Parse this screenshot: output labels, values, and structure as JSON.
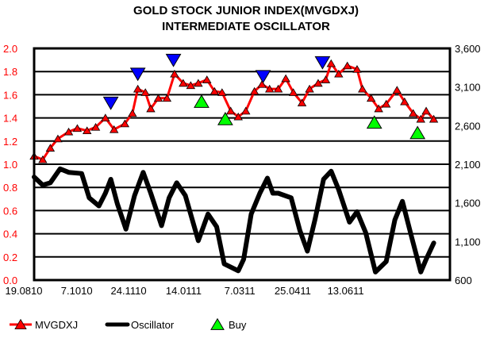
{
  "chart_data": {
    "type": "line",
    "title": "GOLD STOCK JUNIOR INDEX(MVGDXJ)",
    "subtitle": "INTERMEDIATE OSCILLATOR",
    "xlim": [
      "2010-08-19",
      "2011-09-08"
    ],
    "x_ticks": [
      {
        "date": "2010-08-19",
        "label": "19.0810"
      },
      {
        "date": "2010-10-07",
        "label": "7.1010"
      },
      {
        "date": "2010-11-24",
        "label": "24.1110"
      },
      {
        "date": "2011-01-14",
        "label": "14.0111"
      },
      {
        "date": "2011-03-07",
        "label": "7.0311"
      },
      {
        "date": "2011-04-25",
        "label": "25.0411"
      },
      {
        "date": "2011-06-13",
        "label": "13.0611"
      }
    ],
    "y_left": {
      "lim": [
        0,
        2.0
      ],
      "ticks": [
        "0.0",
        "0.2",
        "0.4",
        "0.6",
        "0.8",
        "1.0",
        "1.2",
        "1.4",
        "1.6",
        "1.8",
        "2.0"
      ],
      "color": "#ff0000"
    },
    "y_right": {
      "lim": [
        600,
        3600
      ],
      "ticks": [
        "600",
        "1,100",
        "1,600",
        "2,100",
        "2,600",
        "3,100",
        "3,600"
      ],
      "color": "#000000"
    },
    "grid": true,
    "legend_placement": "bottom",
    "legend": [
      {
        "label": "MVGDXJ",
        "kind": "mvgdxj"
      },
      {
        "label": "Oscillator",
        "kind": "oscillator"
      },
      {
        "label": "Buy",
        "kind": "buy"
      }
    ],
    "series": [
      {
        "name": "MVGDXJ",
        "axis": "right",
        "color": "#ff0000",
        "marker": "triangle-up",
        "points": [
          [
            "2010-08-19",
            2205
          ],
          [
            "2010-08-27",
            2160
          ],
          [
            "2010-09-03",
            2310
          ],
          [
            "2010-09-10",
            2430
          ],
          [
            "2010-09-20",
            2520
          ],
          [
            "2010-09-28",
            2565
          ],
          [
            "2010-10-07",
            2535
          ],
          [
            "2010-10-15",
            2580
          ],
          [
            "2010-10-24",
            2700
          ],
          [
            "2010-11-01",
            2550
          ],
          [
            "2010-11-11",
            2625
          ],
          [
            "2010-11-18",
            2760
          ],
          [
            "2010-11-23",
            3075
          ],
          [
            "2010-11-30",
            3030
          ],
          [
            "2010-12-05",
            2820
          ],
          [
            "2010-12-12",
            2955
          ],
          [
            "2010-12-20",
            2955
          ],
          [
            "2010-12-27",
            3270
          ],
          [
            "2011-01-04",
            3150
          ],
          [
            "2011-01-11",
            3120
          ],
          [
            "2011-01-18",
            3150
          ],
          [
            "2011-01-26",
            3195
          ],
          [
            "2011-02-02",
            3045
          ],
          [
            "2011-02-09",
            3030
          ],
          [
            "2011-02-17",
            2790
          ],
          [
            "2011-02-24",
            2715
          ],
          [
            "2011-03-03",
            2790
          ],
          [
            "2011-03-11",
            3045
          ],
          [
            "2011-03-18",
            3135
          ],
          [
            "2011-03-25",
            3075
          ],
          [
            "2011-04-02",
            3075
          ],
          [
            "2011-04-09",
            3210
          ],
          [
            "2011-04-16",
            3030
          ],
          [
            "2011-04-24",
            2895
          ],
          [
            "2011-05-01",
            3075
          ],
          [
            "2011-05-09",
            3150
          ],
          [
            "2011-05-16",
            3195
          ],
          [
            "2011-05-21",
            3405
          ],
          [
            "2011-05-28",
            3270
          ],
          [
            "2011-06-05",
            3375
          ],
          [
            "2011-06-14",
            3330
          ],
          [
            "2011-06-19",
            3075
          ],
          [
            "2011-06-27",
            2955
          ],
          [
            "2011-07-04",
            2820
          ],
          [
            "2011-07-11",
            2880
          ],
          [
            "2011-07-21",
            3060
          ],
          [
            "2011-07-28",
            2910
          ],
          [
            "2011-08-05",
            2760
          ],
          [
            "2011-08-12",
            2685
          ],
          [
            "2011-08-17",
            2790
          ],
          [
            "2011-08-24",
            2685
          ]
        ]
      },
      {
        "name": "Oscillator",
        "axis": "left",
        "color": "#000000",
        "points": [
          [
            "2010-08-19",
            0.89
          ],
          [
            "2010-08-27",
            0.82
          ],
          [
            "2010-09-03",
            0.84
          ],
          [
            "2010-09-12",
            0.96
          ],
          [
            "2010-09-20",
            0.93
          ],
          [
            "2010-10-02",
            0.92
          ],
          [
            "2010-10-09",
            0.71
          ],
          [
            "2010-10-18",
            0.64
          ],
          [
            "2010-10-24",
            0.75
          ],
          [
            "2010-10-29",
            0.87
          ],
          [
            "2010-11-04",
            0.66
          ],
          [
            "2010-11-12",
            0.44
          ],
          [
            "2010-11-20",
            0.73
          ],
          [
            "2010-11-28",
            0.93
          ],
          [
            "2010-12-05",
            0.75
          ],
          [
            "2010-12-15",
            0.47
          ],
          [
            "2010-12-22",
            0.71
          ],
          [
            "2010-12-29",
            0.84
          ],
          [
            "2011-01-06",
            0.73
          ],
          [
            "2011-01-18",
            0.34
          ],
          [
            "2011-01-27",
            0.57
          ],
          [
            "2011-02-04",
            0.46
          ],
          [
            "2011-02-11",
            0.14
          ],
          [
            "2011-02-24",
            0.08
          ],
          [
            "2011-03-01",
            0.18
          ],
          [
            "2011-03-08",
            0.57
          ],
          [
            "2011-03-16",
            0.75
          ],
          [
            "2011-03-23",
            0.88
          ],
          [
            "2011-03-28",
            0.75
          ],
          [
            "2011-04-02",
            0.75
          ],
          [
            "2011-04-14",
            0.71
          ],
          [
            "2011-04-22",
            0.43
          ],
          [
            "2011-04-29",
            0.25
          ],
          [
            "2011-05-06",
            0.52
          ],
          [
            "2011-05-14",
            0.87
          ],
          [
            "2011-05-21",
            0.94
          ],
          [
            "2011-05-28",
            0.78
          ],
          [
            "2011-06-07",
            0.5
          ],
          [
            "2011-06-14",
            0.59
          ],
          [
            "2011-06-22",
            0.41
          ],
          [
            "2011-07-01",
            0.07
          ],
          [
            "2011-07-11",
            0.16
          ],
          [
            "2011-07-19",
            0.52
          ],
          [
            "2011-07-26",
            0.68
          ],
          [
            "2011-08-03",
            0.39
          ],
          [
            "2011-08-12",
            0.07
          ],
          [
            "2011-08-17",
            0.18
          ],
          [
            "2011-08-24",
            0.32
          ]
        ]
      },
      {
        "name": "Buy",
        "axis": "right",
        "color": "#00ff00",
        "marker": "triangle-up",
        "points": [
          [
            "2011-01-21",
            2910
          ],
          [
            "2011-02-12",
            2685
          ],
          [
            "2011-06-30",
            2640
          ],
          [
            "2011-08-09",
            2505
          ]
        ]
      },
      {
        "axis": "right",
        "color": "#0000ff",
        "marker": "triangle-down",
        "points": [
          [
            "2010-10-29",
            2895
          ],
          [
            "2010-11-23",
            3270
          ],
          [
            "2010-12-26",
            3450
          ],
          [
            "2011-03-19",
            3240
          ],
          [
            "2011-05-13",
            3420
          ]
        ]
      }
    ]
  }
}
